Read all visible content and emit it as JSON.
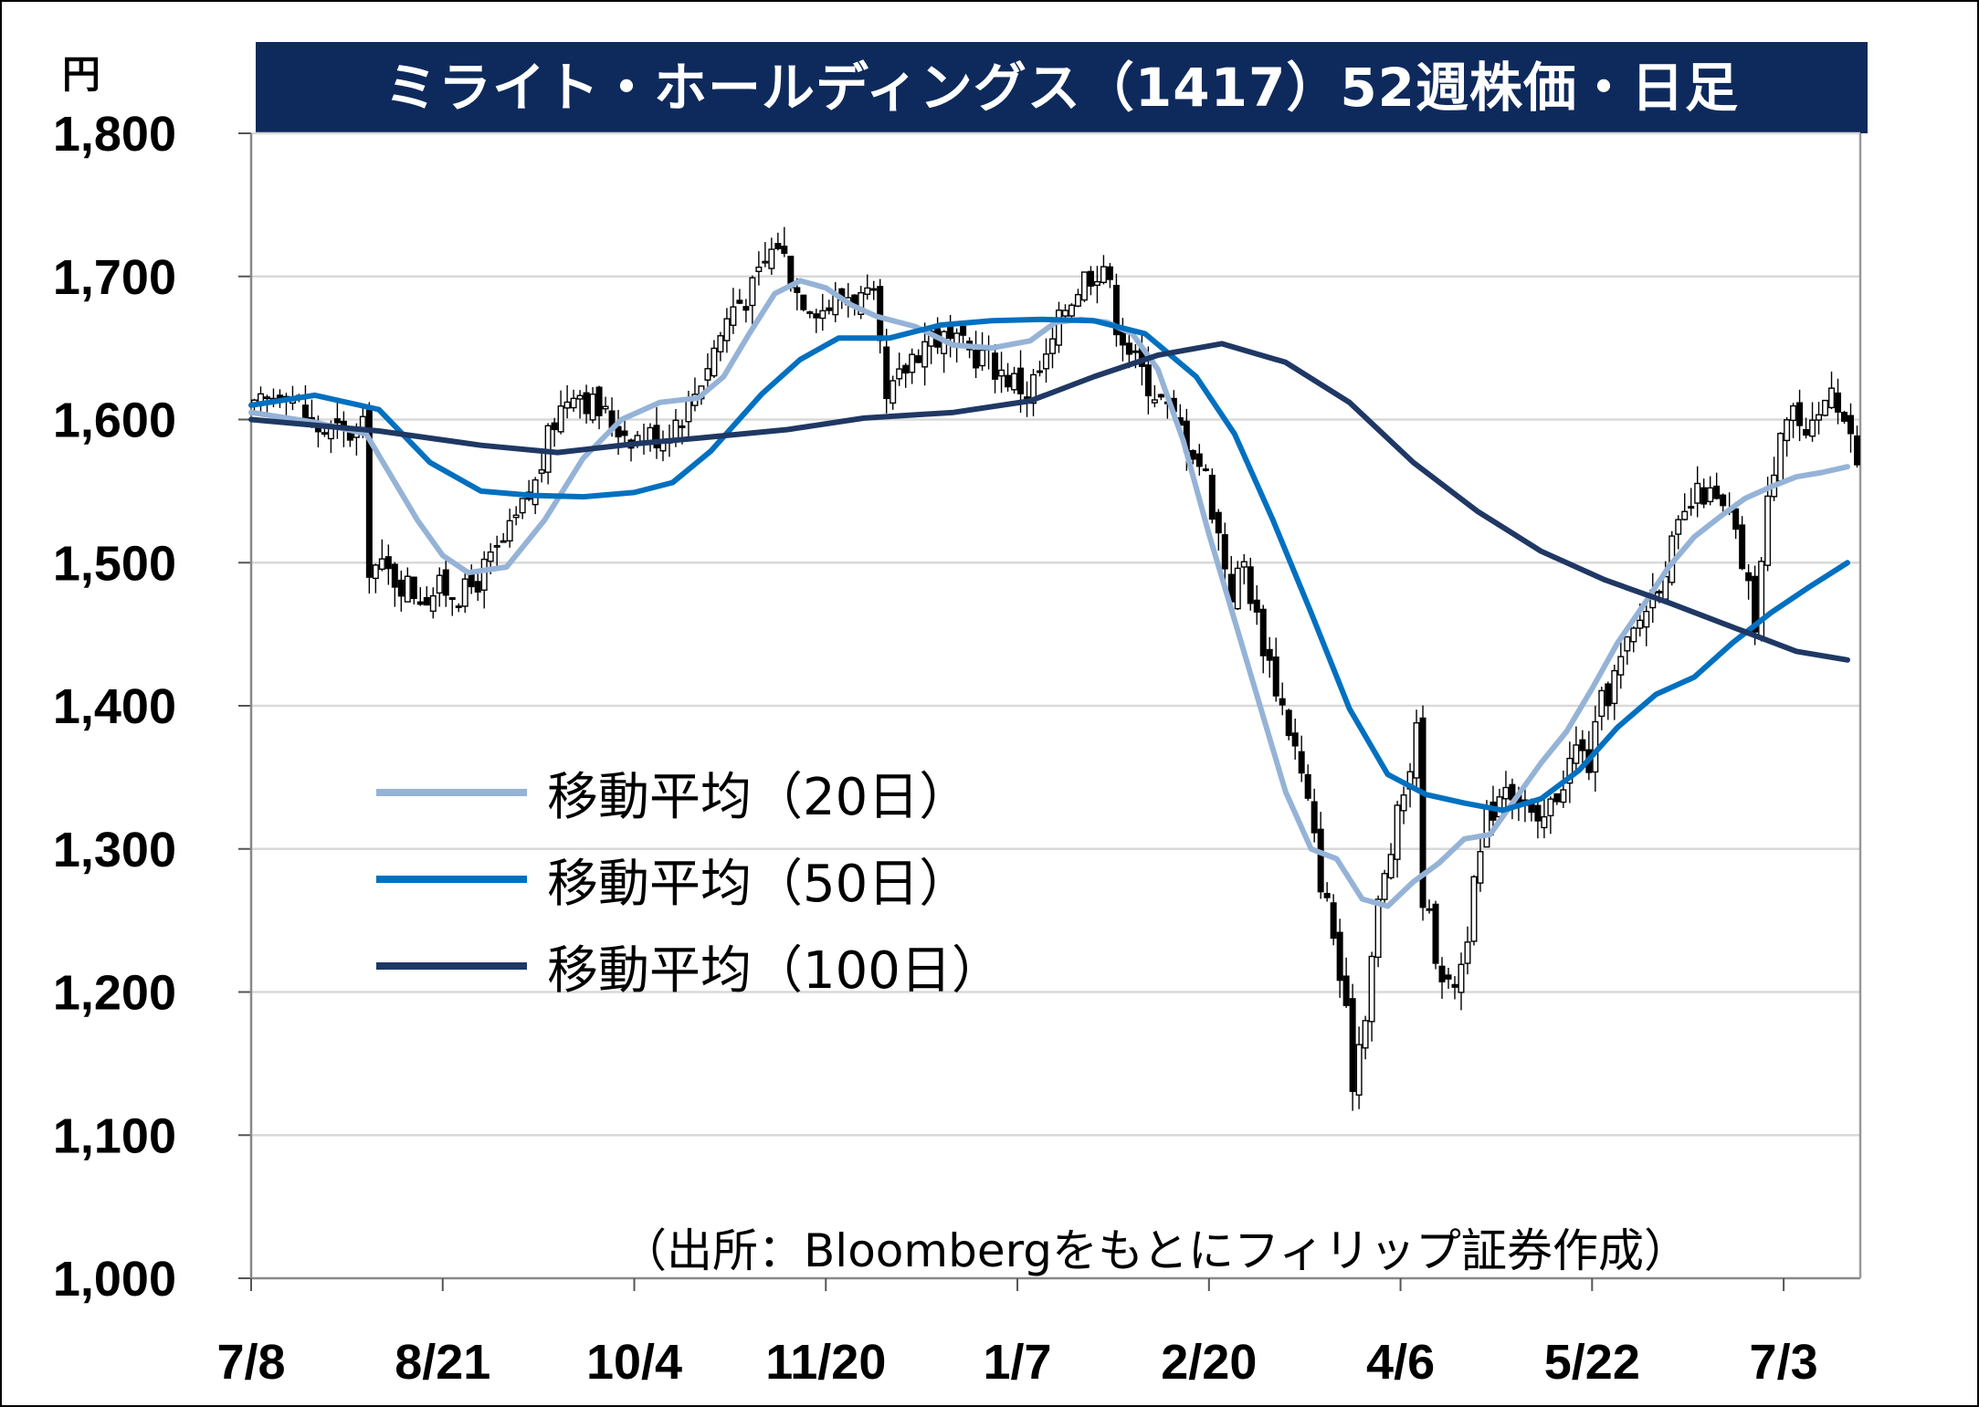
{
  "title": "ミライト・ホールディングス（1417）52週株価・日足",
  "unit": "円",
  "source": "（出所：Bloombergをもとにフィリップ証券作成）",
  "colors": {
    "title_bg": "#0e2a5c",
    "candle": "#000000",
    "ma20": "#95b3d7",
    "ma50": "#0070c0",
    "ma100": "#1f3864",
    "grid": "#d9d9d9"
  },
  "legend": [
    {
      "label": "移動平均（20日）",
      "color_key": "ma20"
    },
    {
      "label": "移動平均（50日）",
      "color_key": "ma50"
    },
    {
      "label": "移動平均（100日）",
      "color_key": "ma100"
    }
  ],
  "chart_data": {
    "type": "candlestick",
    "title": "ミライト・ホールディングス（1417）52週株価・日足",
    "ylabel": "円",
    "ylim": [
      1000,
      1800
    ],
    "yticks": [
      1000,
      1100,
      1200,
      1300,
      1400,
      1500,
      1600,
      1700,
      1800
    ],
    "ytick_labels": [
      "1,000",
      "1,100",
      "1,200",
      "1,300",
      "1,400",
      "1,500",
      "1,600",
      "1,700",
      "1,800"
    ],
    "xtick_labels": [
      "7/8",
      "8/21",
      "10/4",
      "11/20",
      "1/7",
      "2/20",
      "4/6",
      "5/22",
      "7/3"
    ],
    "xtick_index": [
      0,
      30,
      60,
      90,
      120,
      150,
      180,
      210,
      240
    ],
    "grid": true,
    "legend_position": "left-middle",
    "close_series_waypoints": [
      [
        0,
        1605
      ],
      [
        5,
        1625
      ],
      [
        9,
        1595
      ],
      [
        14,
        1590
      ],
      [
        17,
        1592
      ],
      [
        18,
        1500
      ],
      [
        22,
        1490
      ],
      [
        26,
        1478
      ],
      [
        30,
        1482
      ],
      [
        33,
        1478
      ],
      [
        37,
        1500
      ],
      [
        40,
        1520
      ],
      [
        44,
        1555
      ],
      [
        47,
        1600
      ],
      [
        50,
        1625
      ],
      [
        53,
        1610
      ],
      [
        57,
        1595
      ],
      [
        60,
        1588
      ],
      [
        64,
        1590
      ],
      [
        68,
        1610
      ],
      [
        72,
        1650
      ],
      [
        75,
        1680
      ],
      [
        78,
        1690
      ],
      [
        80,
        1710
      ],
      [
        82,
        1725
      ],
      [
        85,
        1690
      ],
      [
        89,
        1678
      ],
      [
        93,
        1688
      ],
      [
        97,
        1680
      ],
      [
        99,
        1610
      ],
      [
        103,
        1645
      ],
      [
        106,
        1660
      ],
      [
        110,
        1650
      ],
      [
        114,
        1645
      ],
      [
        118,
        1630
      ],
      [
        121,
        1620
      ],
      [
        124,
        1640
      ],
      [
        127,
        1680
      ],
      [
        130,
        1700
      ],
      [
        133,
        1710
      ],
      [
        135,
        1670
      ],
      [
        138,
        1640
      ],
      [
        141,
        1620
      ],
      [
        144,
        1600
      ],
      [
        147,
        1580
      ],
      [
        149,
        1560
      ],
      [
        151,
        1520
      ],
      [
        153,
        1480
      ],
      [
        155,
        1500
      ],
      [
        157,
        1460
      ],
      [
        159,
        1430
      ],
      [
        161,
        1400
      ],
      [
        163,
        1370
      ],
      [
        165,
        1330
      ],
      [
        167,
        1280
      ],
      [
        169,
        1240
      ],
      [
        171,
        1180
      ],
      [
        172,
        1140
      ],
      [
        174,
        1190
      ],
      [
        176,
        1260
      ],
      [
        178,
        1300
      ],
      [
        180,
        1340
      ],
      [
        182,
        1380
      ],
      [
        183,
        1270
      ],
      [
        185,
        1230
      ],
      [
        187,
        1200
      ],
      [
        189,
        1220
      ],
      [
        191,
        1270
      ],
      [
        193,
        1320
      ],
      [
        196,
        1350
      ],
      [
        199,
        1330
      ],
      [
        201,
        1310
      ],
      [
        203,
        1330
      ],
      [
        205,
        1350
      ],
      [
        207,
        1370
      ],
      [
        209,
        1360
      ],
      [
        211,
        1400
      ],
      [
        213,
        1420
      ],
      [
        215,
        1440
      ],
      [
        217,
        1460
      ],
      [
        219,
        1480
      ],
      [
        221,
        1500
      ],
      [
        223,
        1520
      ],
      [
        225,
        1540
      ],
      [
        227,
        1550
      ],
      [
        229,
        1540
      ],
      [
        231,
        1530
      ],
      [
        233,
        1500
      ],
      [
        235,
        1460
      ],
      [
        237,
        1540
      ],
      [
        239,
        1600
      ],
      [
        241,
        1610
      ],
      [
        243,
        1580
      ],
      [
        245,
        1600
      ],
      [
        247,
        1630
      ],
      [
        249,
        1600
      ],
      [
        251,
        1570
      ]
    ],
    "series": [
      {
        "name": "移動平均（20日）",
        "color_key": "ma20",
        "points": [
          [
            0,
            1605
          ],
          [
            10,
            1598
          ],
          [
            18,
            1590
          ],
          [
            22,
            1560
          ],
          [
            26,
            1530
          ],
          [
            30,
            1505
          ],
          [
            34,
            1493
          ],
          [
            40,
            1497
          ],
          [
            46,
            1530
          ],
          [
            52,
            1573
          ],
          [
            58,
            1600
          ],
          [
            64,
            1612
          ],
          [
            70,
            1615
          ],
          [
            74,
            1630
          ],
          [
            78,
            1660
          ],
          [
            82,
            1688
          ],
          [
            86,
            1697
          ],
          [
            90,
            1692
          ],
          [
            94,
            1680
          ],
          [
            98,
            1672
          ],
          [
            104,
            1665
          ],
          [
            110,
            1652
          ],
          [
            116,
            1650
          ],
          [
            122,
            1655
          ],
          [
            126,
            1668
          ],
          [
            130,
            1670
          ],
          [
            134,
            1668
          ],
          [
            138,
            1660
          ],
          [
            142,
            1635
          ],
          [
            146,
            1585
          ],
          [
            150,
            1520
          ],
          [
            154,
            1460
          ],
          [
            158,
            1400
          ],
          [
            162,
            1340
          ],
          [
            166,
            1300
          ],
          [
            170,
            1293
          ],
          [
            174,
            1265
          ],
          [
            178,
            1260
          ],
          [
            182,
            1277
          ],
          [
            186,
            1290
          ],
          [
            190,
            1307
          ],
          [
            194,
            1310
          ],
          [
            198,
            1335
          ],
          [
            202,
            1360
          ],
          [
            206,
            1382
          ],
          [
            210,
            1412
          ],
          [
            214,
            1444
          ],
          [
            218,
            1470
          ],
          [
            222,
            1497
          ],
          [
            226,
            1518
          ],
          [
            230,
            1532
          ],
          [
            234,
            1545
          ],
          [
            238,
            1553
          ],
          [
            242,
            1560
          ],
          [
            246,
            1563
          ],
          [
            250,
            1567
          ]
        ]
      },
      {
        "name": "移動平均（50日）",
        "color_key": "ma50",
        "points": [
          [
            0,
            1610
          ],
          [
            10,
            1617
          ],
          [
            20,
            1607
          ],
          [
            28,
            1570
          ],
          [
            36,
            1550
          ],
          [
            44,
            1547
          ],
          [
            52,
            1546
          ],
          [
            60,
            1549
          ],
          [
            66,
            1556
          ],
          [
            72,
            1578
          ],
          [
            80,
            1618
          ],
          [
            86,
            1642
          ],
          [
            92,
            1657
          ],
          [
            100,
            1657
          ],
          [
            108,
            1666
          ],
          [
            116,
            1669
          ],
          [
            124,
            1670
          ],
          [
            132,
            1669
          ],
          [
            140,
            1660
          ],
          [
            148,
            1630
          ],
          [
            154,
            1590
          ],
          [
            160,
            1530
          ],
          [
            166,
            1465
          ],
          [
            172,
            1398
          ],
          [
            178,
            1352
          ],
          [
            184,
            1338
          ],
          [
            190,
            1332
          ],
          [
            196,
            1327
          ],
          [
            202,
            1335
          ],
          [
            208,
            1355
          ],
          [
            214,
            1385
          ],
          [
            220,
            1408
          ],
          [
            226,
            1420
          ],
          [
            232,
            1444
          ],
          [
            238,
            1465
          ],
          [
            244,
            1483
          ],
          [
            250,
            1500
          ]
        ]
      },
      {
        "name": "移動平均（100日）",
        "color_key": "ma100",
        "points": [
          [
            0,
            1600
          ],
          [
            20,
            1592
          ],
          [
            36,
            1582
          ],
          [
            48,
            1577
          ],
          [
            60,
            1583
          ],
          [
            70,
            1587
          ],
          [
            84,
            1593
          ],
          [
            96,
            1601
          ],
          [
            110,
            1605
          ],
          [
            122,
            1613
          ],
          [
            132,
            1630
          ],
          [
            142,
            1645
          ],
          [
            152,
            1653
          ],
          [
            162,
            1640
          ],
          [
            172,
            1612
          ],
          [
            182,
            1570
          ],
          [
            192,
            1536
          ],
          [
            202,
            1508
          ],
          [
            212,
            1488
          ],
          [
            222,
            1472
          ],
          [
            232,
            1455
          ],
          [
            242,
            1438
          ],
          [
            250,
            1432
          ]
        ]
      }
    ]
  }
}
